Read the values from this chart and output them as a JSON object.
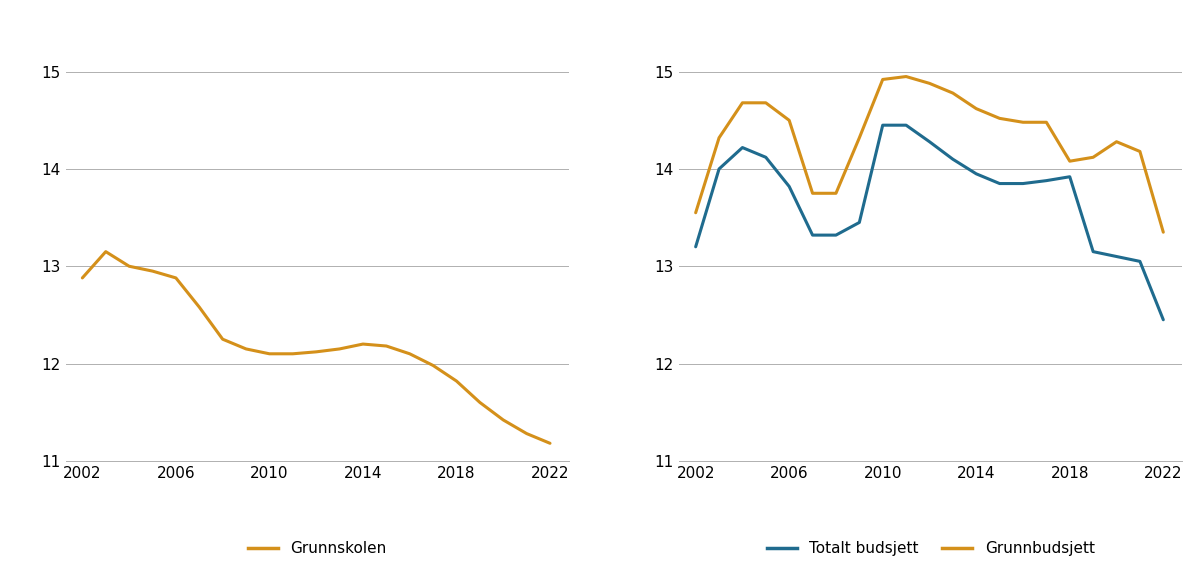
{
  "left": {
    "years": [
      2002,
      2003,
      2004,
      2005,
      2006,
      2007,
      2008,
      2009,
      2010,
      2011,
      2012,
      2013,
      2014,
      2015,
      2016,
      2017,
      2018,
      2019,
      2020,
      2021,
      2022
    ],
    "grunnskolen": [
      12.88,
      13.15,
      13.0,
      12.95,
      12.88,
      12.58,
      12.25,
      12.15,
      12.1,
      12.1,
      12.12,
      12.15,
      12.2,
      12.18,
      12.1,
      11.98,
      11.82,
      11.6,
      11.42,
      11.28,
      11.18
    ],
    "color": "#D4901A",
    "label": "Grunnskolen",
    "ylim": [
      11,
      15.5
    ],
    "yticks": [
      11,
      12,
      13,
      14,
      15
    ],
    "xticks": [
      2002,
      2006,
      2010,
      2014,
      2018,
      2022
    ]
  },
  "right": {
    "years": [
      2002,
      2003,
      2004,
      2005,
      2006,
      2007,
      2008,
      2009,
      2010,
      2011,
      2012,
      2013,
      2014,
      2015,
      2016,
      2017,
      2018,
      2019,
      2020,
      2021,
      2022
    ],
    "totalt": [
      13.2,
      14.0,
      14.22,
      14.12,
      13.82,
      13.32,
      13.32,
      13.45,
      14.45,
      14.45,
      14.28,
      14.1,
      13.95,
      13.85,
      13.85,
      13.88,
      13.92,
      13.15,
      13.1,
      13.05,
      12.45
    ],
    "grunnbudsjett": [
      13.55,
      14.32,
      14.68,
      14.68,
      14.5,
      13.75,
      13.75,
      14.32,
      14.92,
      14.95,
      14.88,
      14.78,
      14.62,
      14.52,
      14.48,
      14.48,
      14.08,
      14.12,
      14.28,
      14.18,
      13.35
    ],
    "totalt_color": "#1F6B8E",
    "grunnbudsjett_color": "#D4901A",
    "label_totalt": "Totalt budsjett",
    "label_grunnbudsjett": "Grunnbudsjett",
    "ylim": [
      11,
      15.5
    ],
    "yticks": [
      11,
      12,
      13,
      14,
      15
    ],
    "xticks": [
      2002,
      2006,
      2010,
      2014,
      2018,
      2022
    ]
  },
  "background_color": "#FFFFFF",
  "line_width": 2.2,
  "tick_fontsize": 11,
  "legend_fontsize": 11
}
